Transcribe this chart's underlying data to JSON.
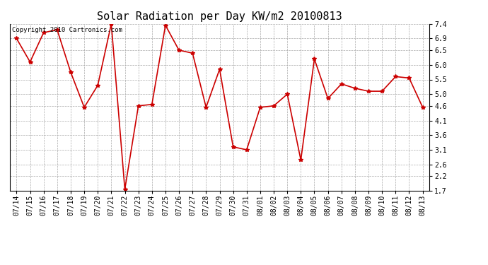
{
  "title": "Solar Radiation per Day KW/m2 20100813",
  "copyright_text": "Copyright 2010 Cartronics.com",
  "labels": [
    "07/14",
    "07/15",
    "07/16",
    "07/17",
    "07/18",
    "07/19",
    "07/20",
    "07/21",
    "07/22",
    "07/23",
    "07/24",
    "07/25",
    "07/26",
    "07/27",
    "07/28",
    "07/29",
    "07/30",
    "07/31",
    "08/01",
    "08/02",
    "08/03",
    "08/04",
    "08/05",
    "08/06",
    "08/07",
    "08/08",
    "08/09",
    "08/10",
    "08/11",
    "08/12",
    "08/13"
  ],
  "values": [
    6.9,
    6.1,
    7.1,
    7.2,
    5.75,
    4.55,
    5.3,
    7.4,
    1.75,
    4.6,
    4.65,
    7.35,
    6.5,
    6.4,
    4.55,
    5.85,
    3.2,
    3.1,
    4.55,
    4.6,
    5.0,
    2.75,
    6.2,
    4.85,
    5.35,
    5.2,
    5.1,
    5.1,
    5.6,
    5.55,
    4.55
  ],
  "line_color": "#cc0000",
  "marker": "*",
  "marker_color": "#cc0000",
  "marker_size": 4,
  "line_width": 1.2,
  "background_color": "#ffffff",
  "plot_bg_color": "#ffffff",
  "grid_color": "#aaaaaa",
  "ylim": [
    1.7,
    7.4
  ],
  "ytick_values": [
    1.7,
    2.2,
    2.6,
    3.1,
    3.6,
    4.1,
    4.6,
    5.0,
    5.5,
    6.0,
    6.5,
    6.9,
    7.4
  ],
  "ytick_labels": [
    "1.7",
    "2.2",
    "2.6",
    "3.1",
    "3.6",
    "4.1",
    "4.6",
    "5.0",
    "5.5",
    "6.0",
    "6.5",
    "6.9",
    "7.4"
  ],
  "title_fontsize": 11,
  "tick_fontsize": 7,
  "copyright_fontsize": 6.5
}
